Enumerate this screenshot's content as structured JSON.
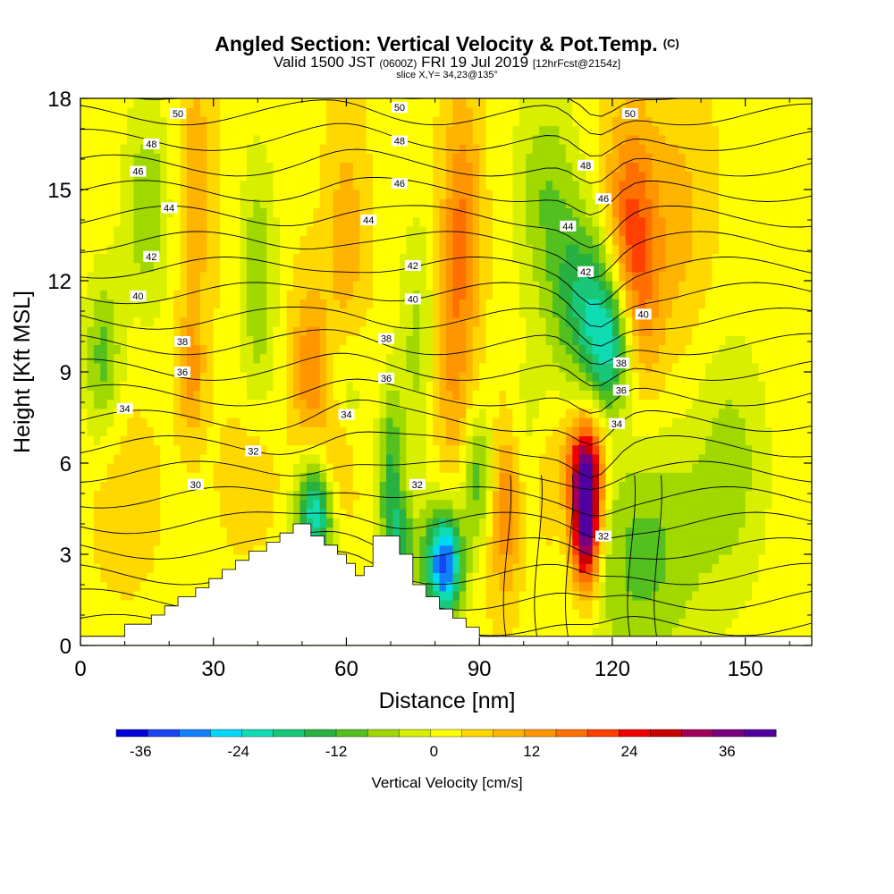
{
  "title": "Angled Section: Vertical Velocity & Pot.Temp.",
  "title_tag": "(C)",
  "valid": {
    "prefix": "Valid 1500 JST",
    "utc": "(0600Z)",
    "date": "FRI 19 Jul 2019",
    "fcst": "[12hrFcst@2154z]"
  },
  "slice_info": "slice X,Y= 34,23@135°",
  "chart_data": {
    "type": "heatmap",
    "xlabel": "Distance [nm]",
    "ylabel": "Height [Kft MSL]",
    "xlim": [
      0,
      165
    ],
    "ylim": [
      0,
      18
    ],
    "x_ticks": [
      "0",
      "30",
      "60",
      "90",
      "120",
      "150"
    ],
    "y_ticks": [
      "0",
      "3",
      "6",
      "9",
      "12",
      "15",
      "18"
    ],
    "colorbar_label": "Vertical Velocity [cm/s]",
    "colorbar_ticks": [
      "-36",
      "-24",
      "-12",
      "0",
      "12",
      "24",
      "36"
    ],
    "colorbar_range": [
      -39,
      42
    ],
    "colorbar_colors": [
      "#0000d8",
      "#1a44f0",
      "#1080ff",
      "#00d8f8",
      "#10dcb4",
      "#18c878",
      "#28b040",
      "#54c020",
      "#a0d800",
      "#d8f000",
      "#ffff00",
      "#ffd800",
      "#ffb400",
      "#ff9600",
      "#ff7000",
      "#ff4000",
      "#f00000",
      "#c80000",
      "#a00058",
      "#780080",
      "#5000a0"
    ],
    "terrain_profile": [
      [
        0,
        0.3
      ],
      [
        10,
        0.3
      ],
      [
        10,
        0.7
      ],
      [
        16,
        0.7
      ],
      [
        16,
        1.0
      ],
      [
        19,
        1.0
      ],
      [
        19,
        1.3
      ],
      [
        22,
        1.3
      ],
      [
        22,
        1.6
      ],
      [
        26,
        1.6
      ],
      [
        26,
        1.9
      ],
      [
        29,
        1.9
      ],
      [
        29,
        2.2
      ],
      [
        32,
        2.2
      ],
      [
        32,
        2.5
      ],
      [
        35,
        2.5
      ],
      [
        35,
        2.8
      ],
      [
        38,
        2.8
      ],
      [
        38,
        3.1
      ],
      [
        42,
        3.1
      ],
      [
        42,
        3.4
      ],
      [
        45,
        3.4
      ],
      [
        45,
        3.7
      ],
      [
        48,
        3.7
      ],
      [
        48,
        4.0
      ],
      [
        52,
        4.0
      ],
      [
        52,
        3.6
      ],
      [
        55,
        3.6
      ],
      [
        55,
        3.3
      ],
      [
        58,
        3.3
      ],
      [
        58,
        3.0
      ],
      [
        60,
        3.0
      ],
      [
        60,
        2.7
      ],
      [
        62,
        2.7
      ],
      [
        62,
        2.3
      ],
      [
        64,
        2.3
      ],
      [
        64,
        2.6
      ],
      [
        66,
        2.6
      ],
      [
        66,
        3.6
      ],
      [
        72,
        3.6
      ],
      [
        72,
        3.0
      ],
      [
        75,
        3.0
      ],
      [
        75,
        2.0
      ],
      [
        78,
        2.0
      ],
      [
        78,
        1.6
      ],
      [
        81,
        1.6
      ],
      [
        81,
        1.2
      ],
      [
        84,
        1.2
      ],
      [
        84,
        0.9
      ],
      [
        87,
        0.9
      ],
      [
        87,
        0.6
      ],
      [
        90,
        0.6
      ],
      [
        90,
        0.3
      ],
      [
        165,
        0.3
      ]
    ],
    "velocity_features": [
      {
        "x": 82,
        "z": 2.7,
        "w": -36,
        "sx": 3.0,
        "sz": 1.3
      },
      {
        "x": 53,
        "z": 4.4,
        "w": -26,
        "sx": 3.0,
        "sz": 1.4
      },
      {
        "x": 120,
        "z": 10.0,
        "w": -24,
        "sx": 4.0,
        "sz": 1.7
      },
      {
        "x": 113,
        "z": 11.5,
        "w": -16,
        "sx": 5.0,
        "sz": 2.0
      },
      {
        "x": 70,
        "z": 5.8,
        "w": -14,
        "sx": 2.0,
        "sz": 2.0
      },
      {
        "x": 72,
        "z": 3.4,
        "w": -14,
        "sx": 2.5,
        "sz": 1.2
      },
      {
        "x": 90,
        "z": 5.5,
        "w": -14,
        "sx": 2.5,
        "sz": 1.6
      },
      {
        "x": 103,
        "z": 6.0,
        "w": -10,
        "sx": 4.0,
        "sz": 2.5
      },
      {
        "x": 105,
        "z": 15.0,
        "w": -10,
        "sx": 5.0,
        "sz": 2.5
      },
      {
        "x": 127,
        "z": 3.0,
        "w": -12,
        "sx": 10.0,
        "sz": 3.0
      },
      {
        "x": 5,
        "z": 9.5,
        "w": -12,
        "sx": 3.0,
        "sz": 2.0
      },
      {
        "x": 15,
        "z": 14.5,
        "w": -10,
        "sx": 4.0,
        "sz": 2.5
      },
      {
        "x": 40,
        "z": 12.0,
        "w": -10,
        "sx": 3.0,
        "sz": 3.0
      },
      {
        "x": 60,
        "z": 8.0,
        "w": -8,
        "sx": 3.0,
        "sz": 2.0
      },
      {
        "x": 76,
        "z": 10.0,
        "w": -8,
        "sx": 3.0,
        "sz": 3.0
      },
      {
        "x": 147,
        "z": 6.0,
        "w": -8,
        "sx": 6.0,
        "sz": 3.0
      },
      {
        "x": 45,
        "z": 1.0,
        "w": -8,
        "sx": 5.0,
        "sz": 1.0
      },
      {
        "x": 114,
        "z": 4.0,
        "w": 42,
        "sx": 2.2,
        "sz": 1.5
      },
      {
        "x": 114,
        "z": 6.0,
        "w": 24,
        "sx": 3.0,
        "sz": 1.2
      },
      {
        "x": 125,
        "z": 11.0,
        "w": 14,
        "sx": 4.0,
        "sz": 2.5
      },
      {
        "x": 124,
        "z": 14.5,
        "w": 12,
        "sx": 4.0,
        "sz": 2.5
      },
      {
        "x": 96,
        "z": 4.5,
        "w": 14,
        "sx": 3.0,
        "sz": 2.0
      },
      {
        "x": 105,
        "z": 5.5,
        "w": 12,
        "sx": 3.0,
        "sz": 2.0
      },
      {
        "x": 86,
        "z": 14.0,
        "w": 12,
        "sx": 3.0,
        "sz": 3.0
      },
      {
        "x": 84,
        "z": 9.0,
        "w": 8,
        "sx": 3.0,
        "sz": 3.0
      },
      {
        "x": 52,
        "z": 9.0,
        "w": 12,
        "sx": 3.0,
        "sz": 2.0
      },
      {
        "x": 58,
        "z": 6.0,
        "w": 10,
        "sx": 3.0,
        "sz": 1.5
      },
      {
        "x": 60,
        "z": 13.0,
        "w": 8,
        "sx": 3.0,
        "sz": 3.0
      },
      {
        "x": 25,
        "z": 9.0,
        "w": 10,
        "sx": 2.0,
        "sz": 1.5
      },
      {
        "x": 26,
        "z": 15.0,
        "w": 8,
        "sx": 3.0,
        "sz": 3.0
      },
      {
        "x": 135,
        "z": 14.0,
        "w": 6,
        "sx": 5.0,
        "sz": 3.0
      },
      {
        "x": 10,
        "z": 5.0,
        "w": 4,
        "sx": 5.0,
        "sz": 2.0
      },
      {
        "x": 38,
        "z": 5.5,
        "w": 5,
        "sx": 4.0,
        "sz": 1.5
      }
    ],
    "theta_contours": {
      "levels": [
        29,
        30,
        31,
        32,
        33,
        34,
        35,
        36,
        37,
        38,
        39,
        40,
        41,
        42,
        43,
        44,
        45,
        46,
        47,
        48,
        49,
        50,
        51
      ],
      "labels": [
        {
          "text": "50",
          "x": 22,
          "z": 17.5
        },
        {
          "text": "50",
          "x": 72,
          "z": 17.7
        },
        {
          "text": "50",
          "x": 124,
          "z": 17.5
        },
        {
          "text": "48",
          "x": 16,
          "z": 16.5
        },
        {
          "text": "48",
          "x": 72,
          "z": 16.6
        },
        {
          "text": "48",
          "x": 114,
          "z": 15.8
        },
        {
          "text": "46",
          "x": 13,
          "z": 15.6
        },
        {
          "text": "46",
          "x": 72,
          "z": 15.2
        },
        {
          "text": "46",
          "x": 118,
          "z": 14.7
        },
        {
          "text": "44",
          "x": 20,
          "z": 14.4
        },
        {
          "text": "44",
          "x": 65,
          "z": 14.0
        },
        {
          "text": "44",
          "x": 110,
          "z": 13.8
        },
        {
          "text": "42",
          "x": 16,
          "z": 12.8
        },
        {
          "text": "42",
          "x": 75,
          "z": 12.5
        },
        {
          "text": "42",
          "x": 114,
          "z": 12.3
        },
        {
          "text": "40",
          "x": 13,
          "z": 11.5
        },
        {
          "text": "40",
          "x": 75,
          "z": 11.4
        },
        {
          "text": "40",
          "x": 127,
          "z": 10.9
        },
        {
          "text": "38",
          "x": 23,
          "z": 10.0
        },
        {
          "text": "38",
          "x": 69,
          "z": 10.1
        },
        {
          "text": "38",
          "x": 122,
          "z": 9.3
        },
        {
          "text": "36",
          "x": 23,
          "z": 9.0
        },
        {
          "text": "36",
          "x": 69,
          "z": 8.8
        },
        {
          "text": "36",
          "x": 122,
          "z": 8.4
        },
        {
          "text": "34",
          "x": 10,
          "z": 7.8
        },
        {
          "text": "34",
          "x": 60,
          "z": 7.6
        },
        {
          "text": "34",
          "x": 121,
          "z": 7.3
        },
        {
          "text": "32",
          "x": 39,
          "z": 6.4
        },
        {
          "text": "32",
          "x": 76,
          "z": 5.3
        },
        {
          "text": "32",
          "x": 118,
          "z": 3.6
        },
        {
          "text": "30",
          "x": 26,
          "z": 5.3
        }
      ]
    }
  }
}
